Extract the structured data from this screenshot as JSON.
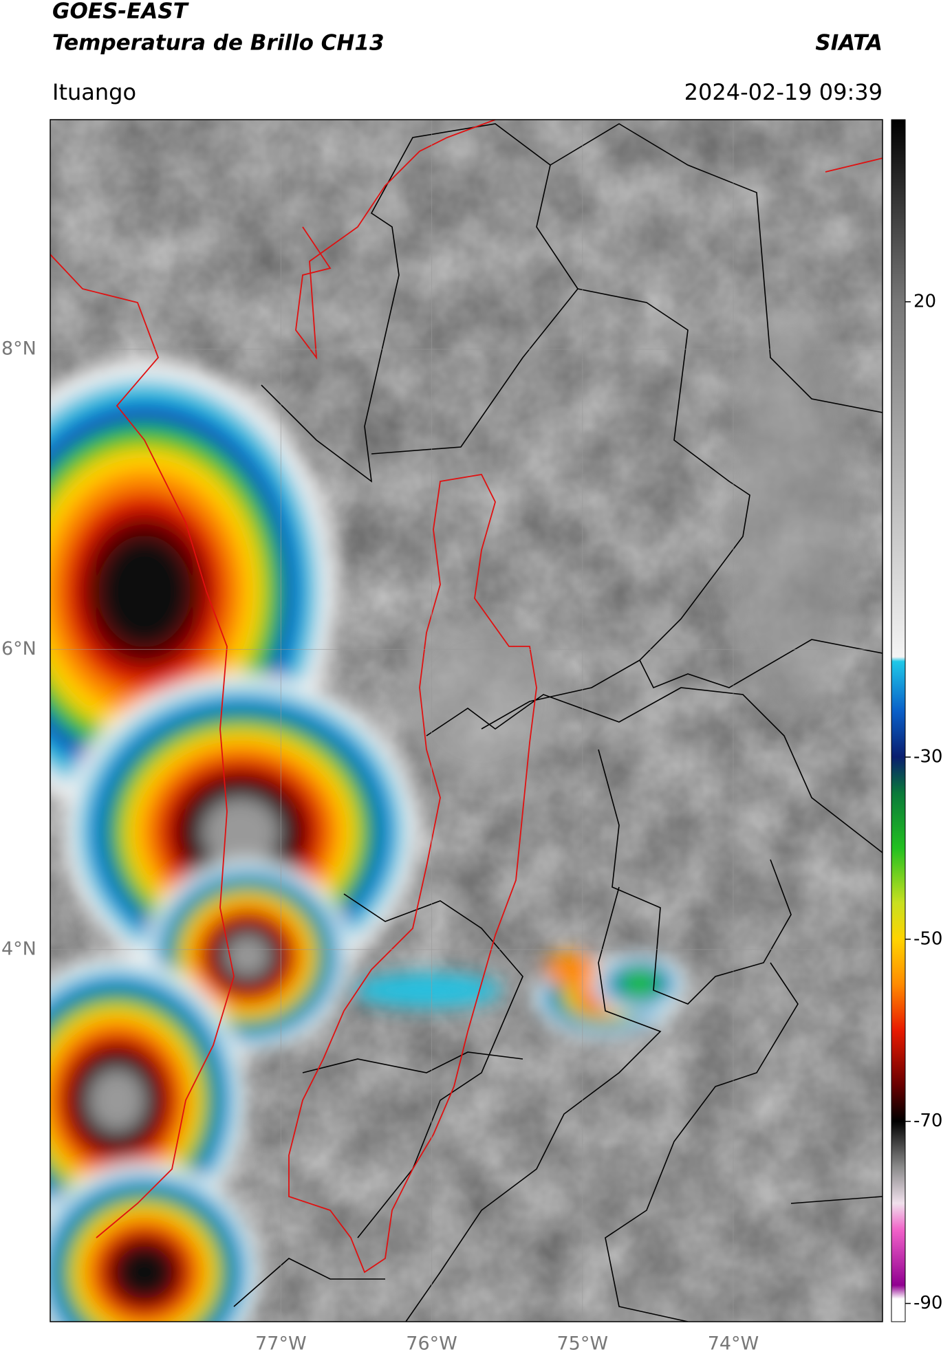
{
  "header": {
    "title": "GOES-EAST",
    "subtitle": "Temperatura de Brillo CH13",
    "agency": "SIATA",
    "location": "Ituango",
    "timestamp": "2024-02-19 09:39"
  },
  "map": {
    "xlim": [
      -78.53,
      -73.01
    ],
    "ylim": [
      1.52,
      9.53
    ],
    "xticks": [
      {
        "value": -77,
        "label": "77°W"
      },
      {
        "value": -76,
        "label": "76°W"
      },
      {
        "value": -75,
        "label": "75°W"
      },
      {
        "value": -74,
        "label": "74°W"
      }
    ],
    "yticks": [
      {
        "value": 8,
        "label": "8°N"
      },
      {
        "value": 6,
        "label": "6°N"
      },
      {
        "value": 4,
        "label": "4°N"
      }
    ],
    "grid": true
  },
  "colorbar": {
    "clim": [
      -92,
      40
    ],
    "ticks": [
      20,
      -30,
      -50,
      -70,
      -90
    ],
    "stops": [
      {
        "value": 40,
        "color": "#000000"
      },
      {
        "value": 20,
        "color": "#777777"
      },
      {
        "value": -19,
        "color": "#f4f4f4"
      },
      {
        "value": -19.5,
        "color": "#1fc8e8"
      },
      {
        "value": -25,
        "color": "#0a5fc8"
      },
      {
        "value": -30,
        "color": "#0a1e6e"
      },
      {
        "value": -34,
        "color": "#0a7a3a"
      },
      {
        "value": -40,
        "color": "#22c020"
      },
      {
        "value": -46,
        "color": "#c8e020"
      },
      {
        "value": -50,
        "color": "#ffd400"
      },
      {
        "value": -55,
        "color": "#ff8a00"
      },
      {
        "value": -60,
        "color": "#e81a00"
      },
      {
        "value": -66,
        "color": "#6a0000"
      },
      {
        "value": -70,
        "color": "#000000"
      },
      {
        "value": -75,
        "color": "#8a8a8a"
      },
      {
        "value": -79,
        "color": "#f0e0ec"
      },
      {
        "value": -82,
        "color": "#f060c8"
      },
      {
        "value": -88,
        "color": "#900090"
      },
      {
        "value": -89.5,
        "color": "#ffffff"
      },
      {
        "value": -92,
        "color": "#ffffff"
      }
    ]
  }
}
